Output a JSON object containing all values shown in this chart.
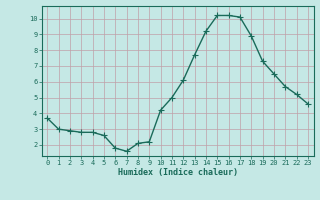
{
  "x": [
    0,
    1,
    2,
    3,
    4,
    5,
    6,
    7,
    8,
    9,
    10,
    11,
    12,
    13,
    14,
    15,
    16,
    17,
    18,
    19,
    20,
    21,
    22,
    23
  ],
  "y": [
    3.7,
    3.0,
    2.9,
    2.8,
    2.8,
    2.6,
    1.8,
    1.6,
    2.1,
    2.2,
    4.2,
    5.0,
    6.1,
    7.7,
    9.2,
    10.2,
    10.2,
    10.1,
    8.9,
    7.3,
    6.5,
    5.7,
    5.2,
    4.6
  ],
  "xlabel": "Humidex (Indice chaleur)",
  "bg_color": "#c5e8e5",
  "line_color": "#1a6b5a",
  "grid_color": "#c0a0a8",
  "axis_color": "#1a6b5a",
  "spine_color": "#1a6b5a",
  "ylim": [
    1.3,
    10.8
  ],
  "xlim": [
    -0.5,
    23.5
  ],
  "yticks": [
    2,
    3,
    4,
    5,
    6,
    7,
    8,
    9,
    10
  ],
  "xticks": [
    0,
    1,
    2,
    3,
    4,
    5,
    6,
    7,
    8,
    9,
    10,
    11,
    12,
    13,
    14,
    15,
    16,
    17,
    18,
    19,
    20,
    21,
    22,
    23
  ],
  "tick_fontsize": 5.0,
  "xlabel_fontsize": 6.0,
  "marker_size": 2.0,
  "linewidth": 1.0
}
